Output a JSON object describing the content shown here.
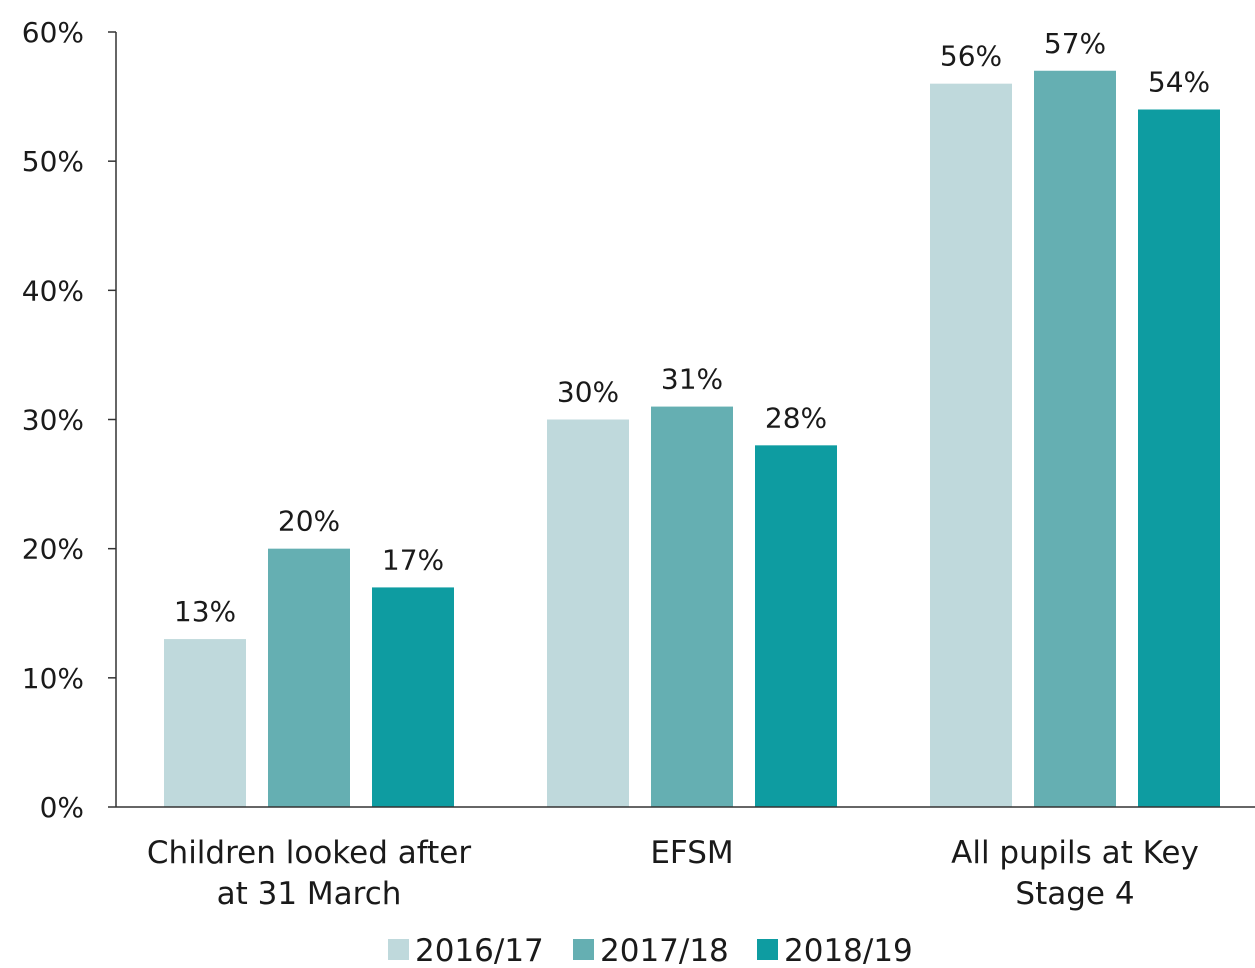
{
  "chart_data": {
    "type": "bar",
    "categories": [
      [
        "Children looked after",
        "at 31 March"
      ],
      [
        "EFSM"
      ],
      [
        "All pupils at Key",
        "Stage 4"
      ]
    ],
    "series": [
      {
        "name": "2016/17",
        "color": "#bfd9dc",
        "values": [
          13,
          30,
          56
        ],
        "labels": [
          "13%",
          "30%",
          "56%"
        ]
      },
      {
        "name": "2017/18",
        "color": "#65afb2",
        "values": [
          20,
          31,
          57
        ],
        "labels": [
          "20%",
          "31%",
          "57%"
        ]
      },
      {
        "name": "2018/19",
        "color": "#0e9ca1",
        "values": [
          17,
          28,
          54
        ],
        "labels": [
          "17%",
          "28%",
          "54%"
        ]
      }
    ],
    "y_ticks": [
      0,
      10,
      20,
      30,
      40,
      50,
      60
    ],
    "y_tick_labels": [
      "0%",
      "10%",
      "20%",
      "30%",
      "40%",
      "50%",
      "60%"
    ],
    "ylim": [
      0,
      60
    ],
    "grid": false,
    "legend_position": "bottom",
    "title": "",
    "xlabel": "",
    "ylabel": ""
  }
}
